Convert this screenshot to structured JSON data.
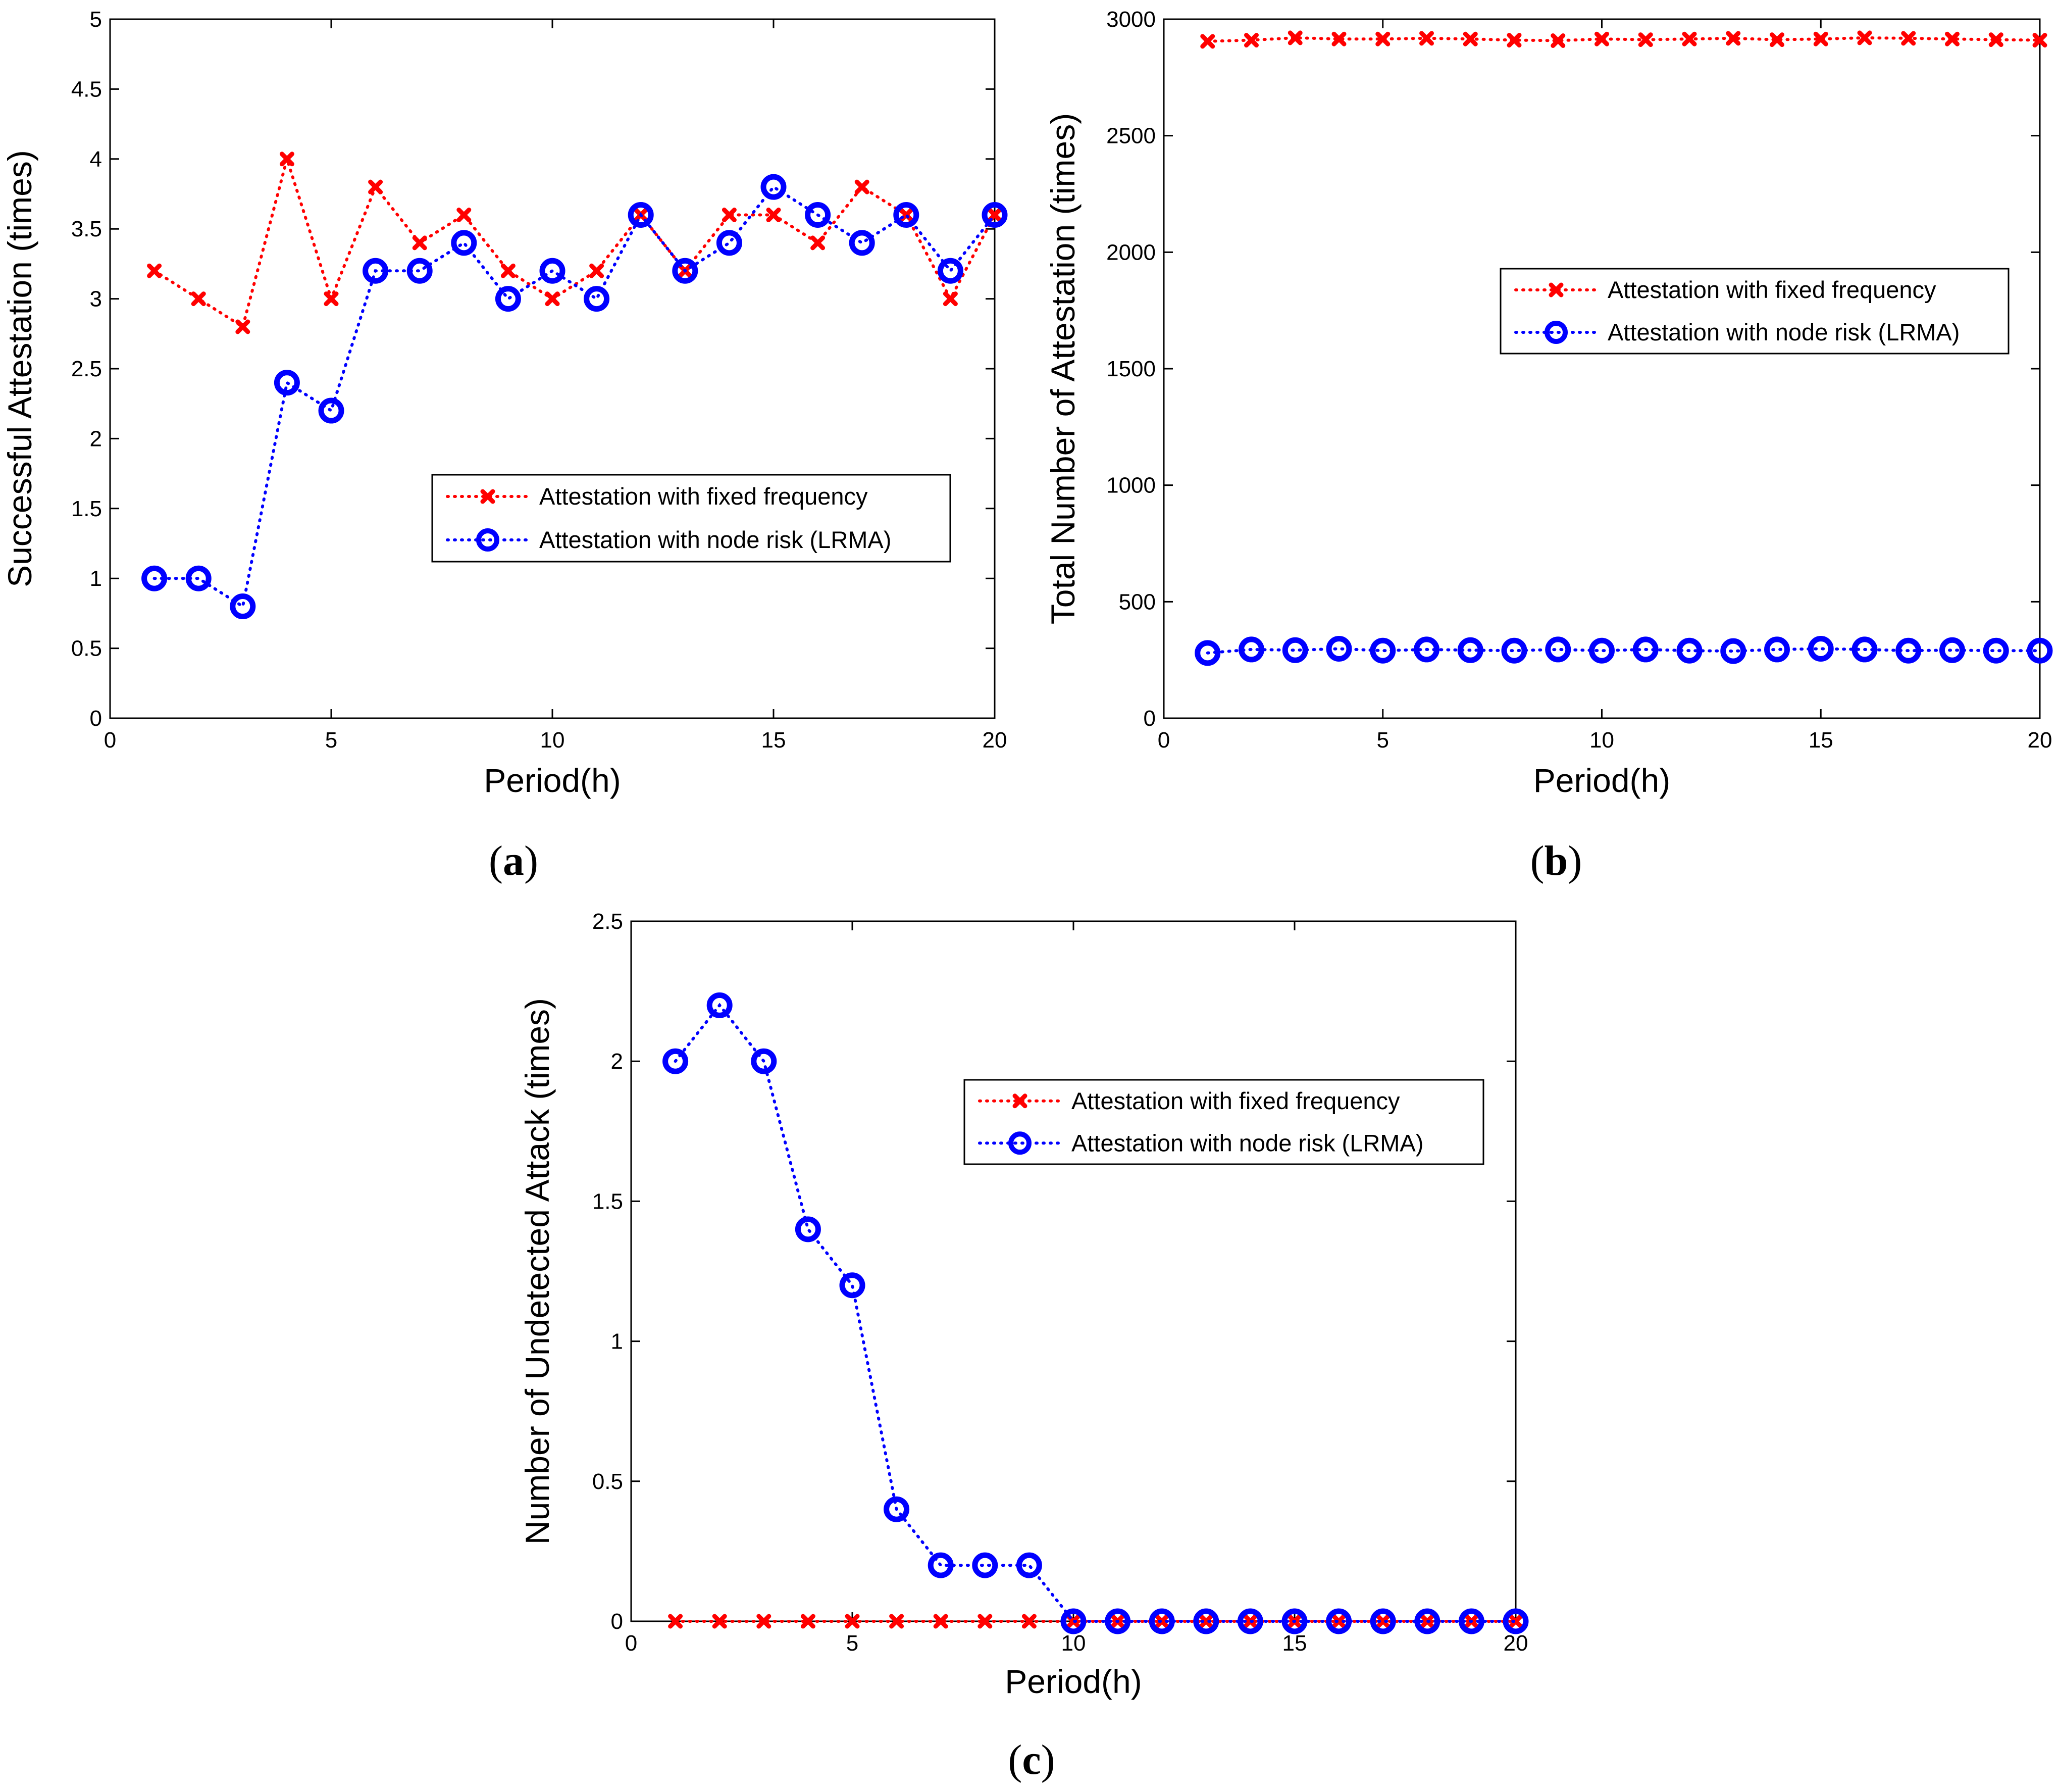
{
  "chart_data": [
    {
      "panel": "a",
      "panel_label": "(a)",
      "type": "line",
      "xlabel": "Period(h)",
      "ylabel": "Successful Attestation (times)",
      "xlim": [
        0,
        20
      ],
      "ylim": [
        0,
        5
      ],
      "xticks": [
        0,
        5,
        10,
        15,
        20
      ],
      "yticks": [
        0,
        0.5,
        1,
        1.5,
        2,
        2.5,
        3,
        3.5,
        4,
        4.5,
        5
      ],
      "grid": false,
      "legend_position": "center-right",
      "x": [
        1,
        2,
        3,
        4,
        5,
        6,
        7,
        8,
        9,
        10,
        11,
        12,
        13,
        14,
        15,
        16,
        17,
        18,
        19,
        20
      ],
      "series": [
        {
          "name": "Attestation with fixed frequency",
          "color": "#ff0000",
          "marker": "x",
          "values": [
            3.2,
            3.0,
            2.8,
            4.0,
            3.0,
            3.8,
            3.4,
            3.6,
            3.2,
            3.0,
            3.2,
            3.6,
            3.2,
            3.6,
            3.6,
            3.4,
            3.8,
            3.6,
            3.0,
            3.6
          ]
        },
        {
          "name": "Attestation with node risk (LRMA)",
          "color": "#0000ff",
          "marker": "o",
          "values": [
            1.0,
            1.0,
            0.8,
            2.4,
            2.2,
            3.2,
            3.2,
            3.4,
            3.0,
            3.2,
            3.0,
            3.6,
            3.2,
            3.4,
            3.8,
            3.6,
            3.4,
            3.6,
            3.2,
            3.6
          ]
        }
      ]
    },
    {
      "panel": "b",
      "panel_label": "(b)",
      "type": "line",
      "xlabel": "Period(h)",
      "ylabel": "Total Number of Attestation (times)",
      "xlim": [
        0,
        20
      ],
      "ylim": [
        0,
        3000
      ],
      "xticks": [
        0,
        5,
        10,
        15,
        20
      ],
      "yticks": [
        0,
        500,
        1000,
        1500,
        2000,
        2500,
        3000
      ],
      "grid": false,
      "legend_position": "upper-right",
      "x": [
        1,
        2,
        3,
        4,
        5,
        6,
        7,
        8,
        9,
        10,
        11,
        12,
        13,
        14,
        15,
        16,
        17,
        18,
        19,
        20
      ],
      "series": [
        {
          "name": "Attestation with fixed frequency",
          "color": "#ff0000",
          "marker": "x",
          "values": [
            2905,
            2910,
            2920,
            2915,
            2915,
            2918,
            2915,
            2910,
            2908,
            2915,
            2912,
            2915,
            2918,
            2912,
            2915,
            2920,
            2918,
            2915,
            2912,
            2910
          ]
        },
        {
          "name": "Attestation with node risk (LRMA)",
          "color": "#0000ff",
          "marker": "o",
          "values": [
            280,
            295,
            292,
            298,
            290,
            295,
            292,
            290,
            295,
            290,
            295,
            290,
            288,
            295,
            298,
            295,
            290,
            292,
            290,
            290
          ]
        }
      ]
    },
    {
      "panel": "c",
      "panel_label": "(c)",
      "type": "line",
      "xlabel": "Period(h)",
      "ylabel": "Number of Undetected Attack (times)",
      "xlim": [
        0,
        20
      ],
      "ylim": [
        0,
        2.5
      ],
      "xticks": [
        0,
        5,
        10,
        15,
        20
      ],
      "yticks": [
        0,
        0.5,
        1,
        1.5,
        2,
        2.5
      ],
      "grid": false,
      "legend_position": "upper-right",
      "x": [
        1,
        2,
        3,
        4,
        5,
        6,
        7,
        8,
        9,
        10,
        11,
        12,
        13,
        14,
        15,
        16,
        17,
        18,
        19,
        20
      ],
      "series": [
        {
          "name": "Attestation with fixed frequency",
          "color": "#ff0000",
          "marker": "x",
          "values": [
            0,
            0,
            0,
            0,
            0,
            0,
            0,
            0,
            0,
            0,
            0,
            0,
            0,
            0,
            0,
            0,
            0,
            0,
            0,
            0
          ]
        },
        {
          "name": "Attestation with node risk (LRMA)",
          "color": "#0000ff",
          "marker": "o",
          "values": [
            2.0,
            2.2,
            2.0,
            1.4,
            1.2,
            0.4,
            0.2,
            0.2,
            0.2,
            0,
            0,
            0,
            0,
            0,
            0,
            0,
            0,
            0,
            0,
            0
          ]
        }
      ]
    }
  ]
}
